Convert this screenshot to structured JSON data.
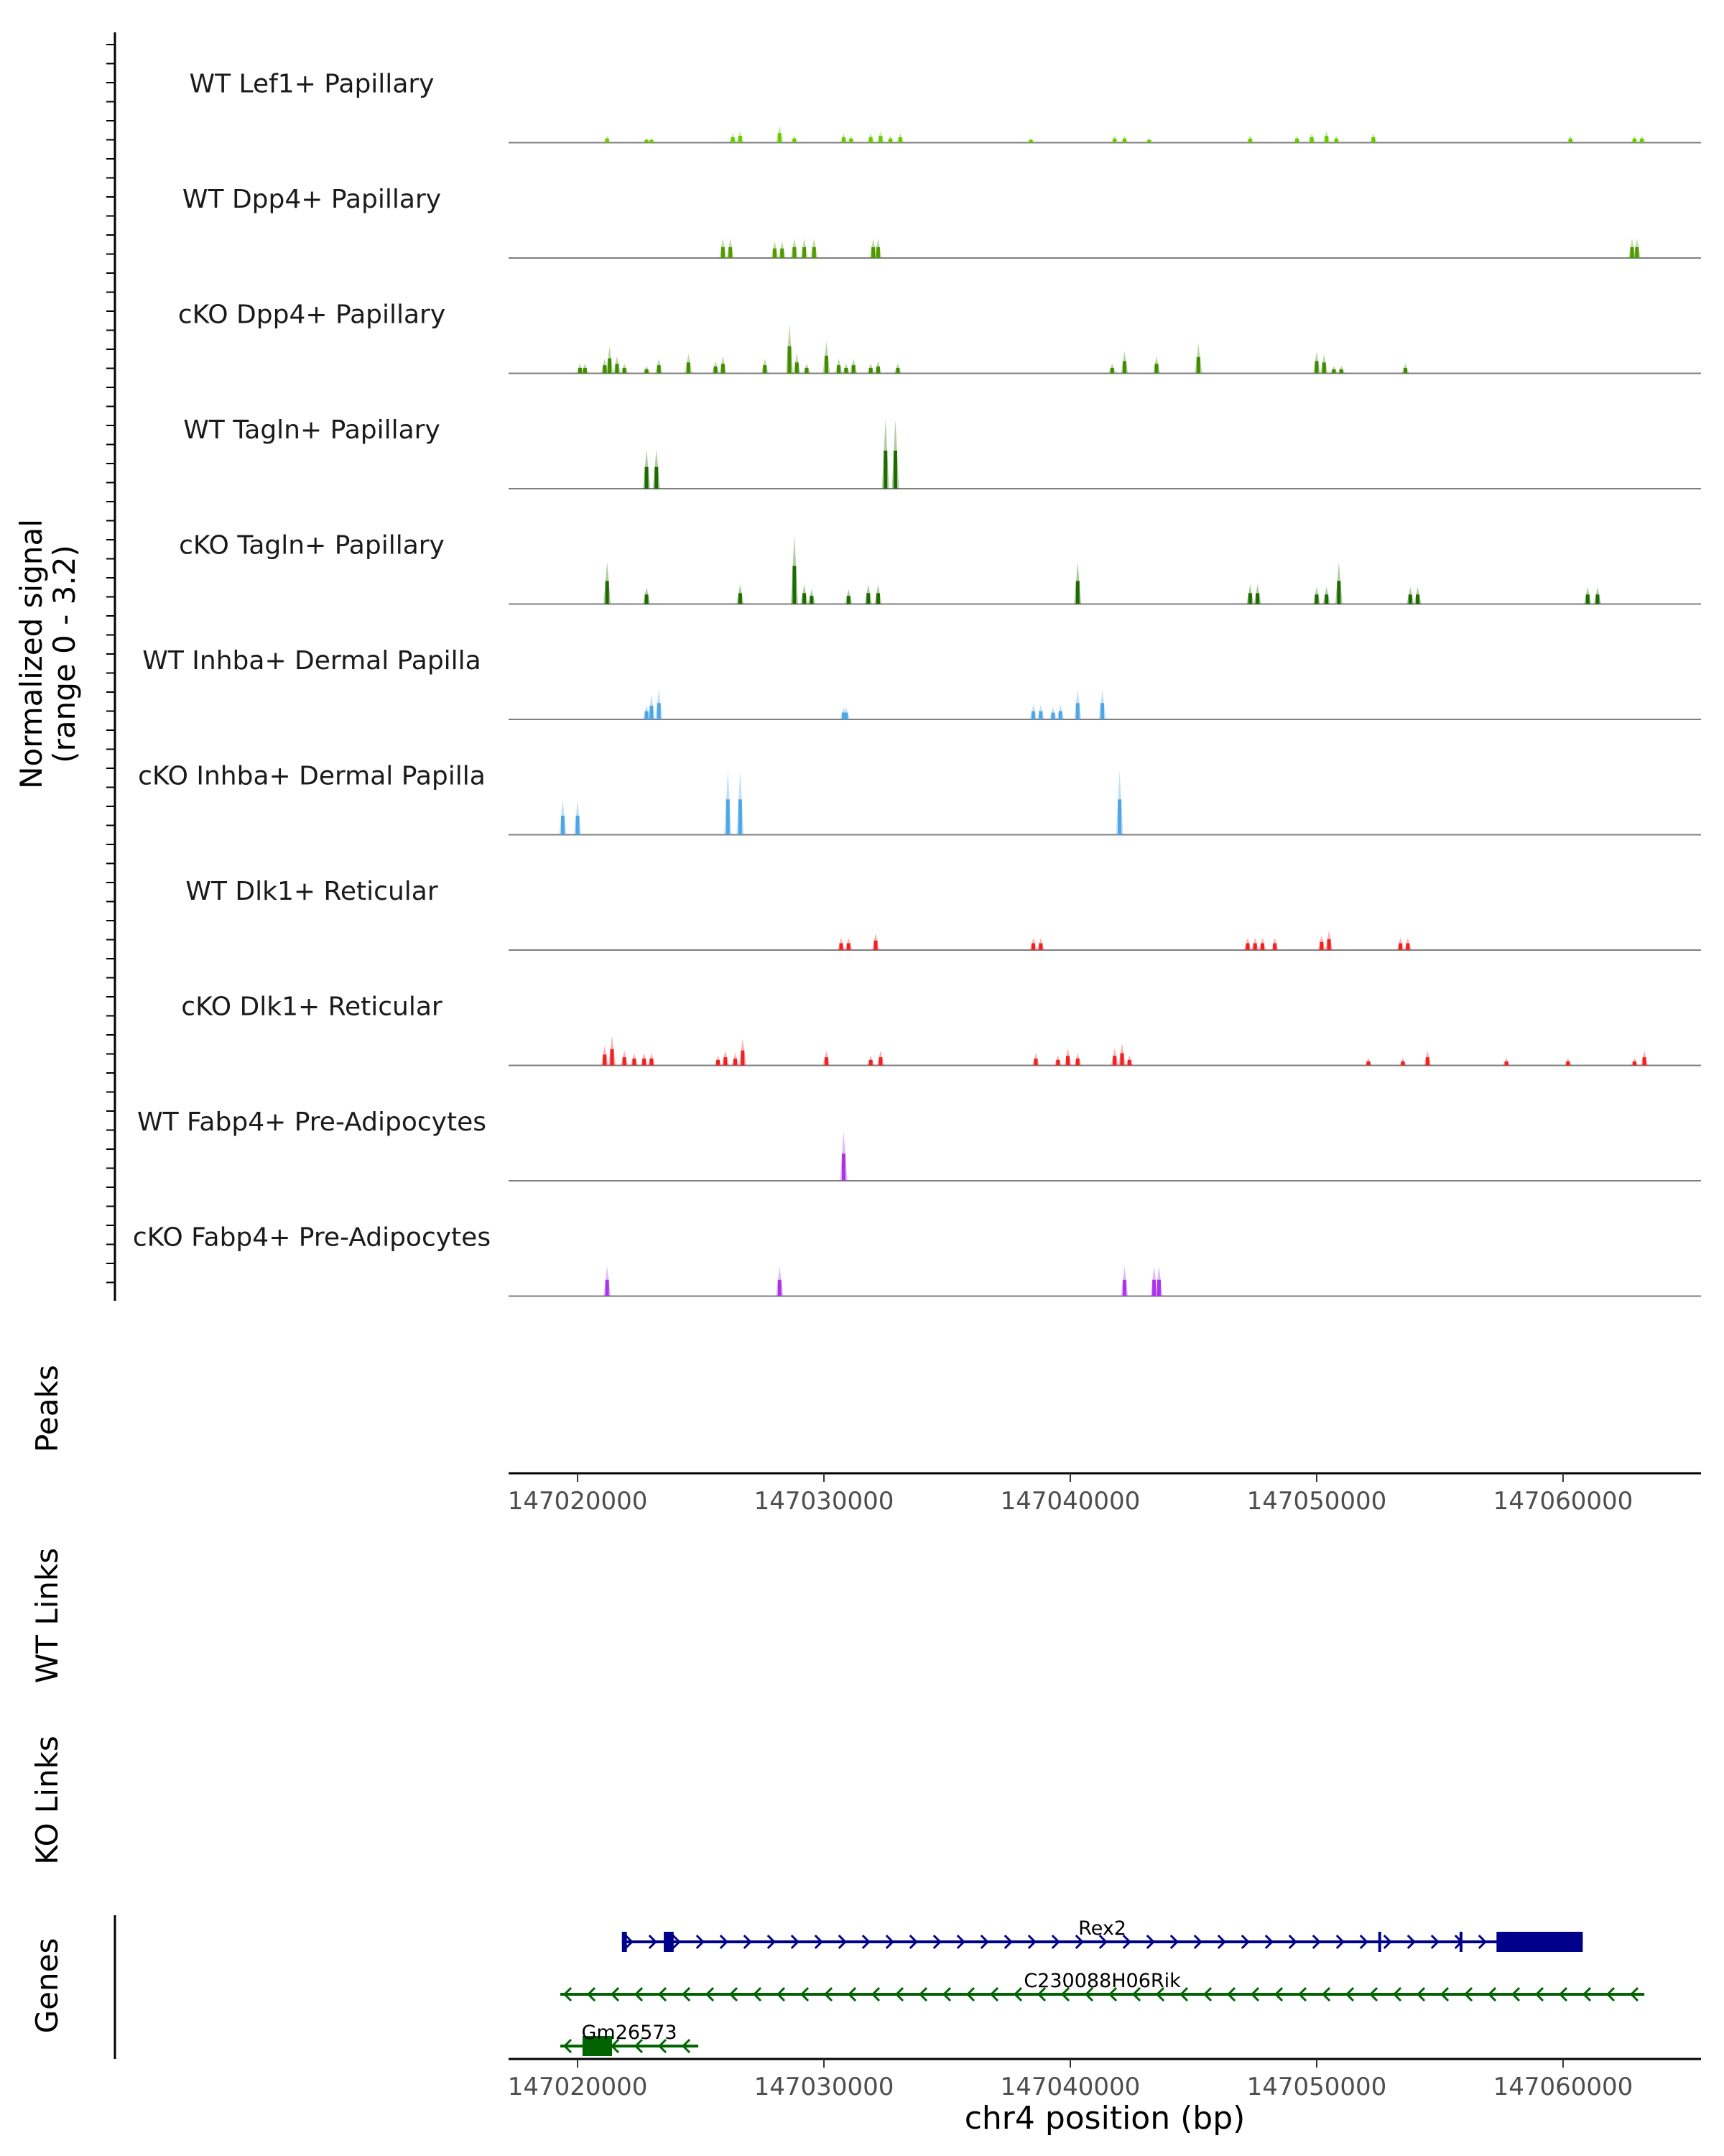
{
  "chart_data": {
    "type": "genome-coverage",
    "y_axis_label": [
      "Normalized signal",
      "(range 0 - 3.2)"
    ],
    "x_axis_label": "chr4 position (bp)",
    "xlim": [
      147017200,
      147065600
    ],
    "x_ticks": [
      147020000,
      147030000,
      147040000,
      147050000,
      147060000
    ],
    "x_tick_labels": [
      "147020000",
      "147030000",
      "147040000",
      "147050000",
      "147060000"
    ],
    "signal_max": 3.2,
    "tracks": [
      {
        "name": "WT Lef1+ Papillary",
        "color": "#66cc00",
        "peaks": [
          [
            147021200,
            0.3
          ],
          [
            147022800,
            0.2
          ],
          [
            147023000,
            0.2
          ],
          [
            147026300,
            0.4
          ],
          [
            147026600,
            0.5
          ],
          [
            147028200,
            0.7
          ],
          [
            147028800,
            0.3
          ],
          [
            147030800,
            0.4
          ],
          [
            147031100,
            0.3
          ],
          [
            147031900,
            0.4
          ],
          [
            147032300,
            0.5
          ],
          [
            147032700,
            0.3
          ],
          [
            147033100,
            0.4
          ],
          [
            147038400,
            0.2
          ],
          [
            147041800,
            0.3
          ],
          [
            147042200,
            0.3
          ],
          [
            147043200,
            0.2
          ],
          [
            147047300,
            0.3
          ],
          [
            147049200,
            0.3
          ],
          [
            147049800,
            0.4
          ],
          [
            147050400,
            0.5
          ],
          [
            147050800,
            0.3
          ],
          [
            147052300,
            0.4
          ],
          [
            147060300,
            0.3
          ],
          [
            147062900,
            0.3
          ],
          [
            147063200,
            0.3
          ]
        ]
      },
      {
        "name": "WT Dpp4+ Papillary",
        "color": "#4f9a00",
        "peaks": [
          [
            147025900,
            0.8
          ],
          [
            147026200,
            0.8
          ],
          [
            147028000,
            0.7
          ],
          [
            147028300,
            0.7
          ],
          [
            147028800,
            0.8
          ],
          [
            147029200,
            0.8
          ],
          [
            147029600,
            0.8
          ],
          [
            147032000,
            0.8
          ],
          [
            147032200,
            0.8
          ],
          [
            147062800,
            0.8
          ],
          [
            147063000,
            0.8
          ]
        ]
      },
      {
        "name": "cKO Dpp4+ Papillary",
        "color": "#3f8c00",
        "peaks": [
          [
            147020100,
            0.4
          ],
          [
            147020300,
            0.4
          ],
          [
            147021100,
            0.6
          ],
          [
            147021300,
            1.1
          ],
          [
            147021600,
            0.7
          ],
          [
            147021900,
            0.4
          ],
          [
            147022800,
            0.3
          ],
          [
            147023300,
            0.6
          ],
          [
            147024500,
            0.8
          ],
          [
            147025600,
            0.5
          ],
          [
            147025900,
            0.7
          ],
          [
            147027600,
            0.6
          ],
          [
            147028600,
            2.0
          ],
          [
            147028900,
            0.8
          ],
          [
            147029300,
            0.4
          ],
          [
            147030100,
            1.3
          ],
          [
            147030600,
            0.6
          ],
          [
            147030900,
            0.4
          ],
          [
            147031200,
            0.6
          ],
          [
            147031900,
            0.4
          ],
          [
            147032200,
            0.5
          ],
          [
            147033000,
            0.4
          ],
          [
            147041700,
            0.4
          ],
          [
            147042200,
            0.9
          ],
          [
            147043500,
            0.7
          ],
          [
            147045200,
            1.2
          ],
          [
            147050000,
            0.9
          ],
          [
            147050300,
            0.8
          ],
          [
            147050700,
            0.3
          ],
          [
            147051000,
            0.3
          ],
          [
            147053600,
            0.4
          ]
        ]
      },
      {
        "name": "WT Tagln+ Papillary",
        "color": "#1e6b00",
        "peaks": [
          [
            147022800,
            1.6
          ],
          [
            147023200,
            1.6
          ],
          [
            147032500,
            2.8
          ],
          [
            147032900,
            2.8
          ]
        ]
      },
      {
        "name": "cKO Tagln+ Papillary",
        "color": "#1e6b00",
        "peaks": [
          [
            147021200,
            1.7
          ],
          [
            147022800,
            0.7
          ],
          [
            147026600,
            0.8
          ],
          [
            147028800,
            2.8
          ],
          [
            147029200,
            0.8
          ],
          [
            147029500,
            0.6
          ],
          [
            147031000,
            0.6
          ],
          [
            147031800,
            0.8
          ],
          [
            147032200,
            0.8
          ],
          [
            147040300,
            1.7
          ],
          [
            147047300,
            0.8
          ],
          [
            147047600,
            0.8
          ],
          [
            147050000,
            0.7
          ],
          [
            147050400,
            0.7
          ],
          [
            147050900,
            1.7
          ],
          [
            147053800,
            0.7
          ],
          [
            147054100,
            0.7
          ],
          [
            147061000,
            0.7
          ],
          [
            147061400,
            0.7
          ]
        ]
      },
      {
        "name": "WT Inhba+ Dermal Papilla",
        "color": "#4da6e8",
        "peaks": [
          [
            147022800,
            0.6
          ],
          [
            147023000,
            1.0
          ],
          [
            147023300,
            1.2
          ],
          [
            147030800,
            0.5
          ],
          [
            147030900,
            0.5
          ],
          [
            147038500,
            0.6
          ],
          [
            147038800,
            0.6
          ],
          [
            147039300,
            0.5
          ],
          [
            147039600,
            0.6
          ],
          [
            147040300,
            1.2
          ],
          [
            147041300,
            1.2
          ]
        ]
      },
      {
        "name": "cKO Inhba+ Dermal Papilla",
        "color": "#4da6e8",
        "peaks": [
          [
            147019400,
            1.4
          ],
          [
            147020000,
            1.4
          ],
          [
            147026100,
            2.6
          ],
          [
            147026600,
            2.6
          ],
          [
            147042000,
            2.6
          ]
        ]
      },
      {
        "name": "WT Dlk1+ Reticular",
        "color": "#ee2222",
        "peaks": [
          [
            147030700,
            0.5
          ],
          [
            147031000,
            0.5
          ],
          [
            147032100,
            0.7
          ],
          [
            147038500,
            0.5
          ],
          [
            147038800,
            0.5
          ],
          [
            147047200,
            0.5
          ],
          [
            147047500,
            0.5
          ],
          [
            147047800,
            0.5
          ],
          [
            147048300,
            0.5
          ],
          [
            147050200,
            0.6
          ],
          [
            147050500,
            0.8
          ],
          [
            147053400,
            0.5
          ],
          [
            147053700,
            0.5
          ]
        ]
      },
      {
        "name": "cKO Dlk1+ Reticular",
        "color": "#ee2222",
        "peaks": [
          [
            147021100,
            0.8
          ],
          [
            147021400,
            1.2
          ],
          [
            147021900,
            0.6
          ],
          [
            147022300,
            0.5
          ],
          [
            147022700,
            0.5
          ],
          [
            147023000,
            0.5
          ],
          [
            147025700,
            0.4
          ],
          [
            147026000,
            0.6
          ],
          [
            147026400,
            0.5
          ],
          [
            147026700,
            1.1
          ],
          [
            147030100,
            0.6
          ],
          [
            147031900,
            0.4
          ],
          [
            147032300,
            0.6
          ],
          [
            147038600,
            0.5
          ],
          [
            147039500,
            0.4
          ],
          [
            147039900,
            0.7
          ],
          [
            147040300,
            0.5
          ],
          [
            147041800,
            0.7
          ],
          [
            147042100,
            0.9
          ],
          [
            147042400,
            0.4
          ],
          [
            147052100,
            0.3
          ],
          [
            147053500,
            0.3
          ],
          [
            147054500,
            0.6
          ],
          [
            147057700,
            0.3
          ],
          [
            147060200,
            0.3
          ],
          [
            147062900,
            0.3
          ],
          [
            147063300,
            0.6
          ]
        ]
      },
      {
        "name": "WT Fabp4+ Pre-Adipocytes",
        "color": "#aa33ee",
        "peaks": [
          [
            147030800,
            2.0
          ]
        ]
      },
      {
        "name": "cKO Fabp4+ Pre-Adipocytes",
        "color": "#aa33ee",
        "peaks": [
          [
            147021200,
            1.2
          ],
          [
            147028200,
            1.2
          ],
          [
            147042200,
            1.2
          ],
          [
            147043400,
            1.2
          ],
          [
            147043600,
            1.2
          ]
        ]
      }
    ],
    "panel_labels": {
      "peaks": "Peaks",
      "wt_links": "WT Links",
      "ko_links": "KO Links",
      "genes": "Genes"
    },
    "genes": [
      {
        "name": "Rex2",
        "strand": "+",
        "start": 147021800,
        "end": 147060800,
        "color": "#00008b",
        "exons": [
          [
            147021800,
            147022000
          ],
          [
            147023500,
            147023900
          ],
          [
            147052500,
            147052600
          ],
          [
            147055800,
            147055900
          ],
          [
            147057300,
            147060800
          ]
        ]
      },
      {
        "name": "C230088H06Rik",
        "strand": "-",
        "start": 147019300,
        "end": 147063300,
        "color": "#006400",
        "exons": []
      },
      {
        "name": "Gm26573",
        "strand": "-",
        "start": 147019300,
        "end": 147024900,
        "color": "#006400",
        "exons": [
          [
            147020200,
            147021400
          ]
        ]
      }
    ]
  }
}
